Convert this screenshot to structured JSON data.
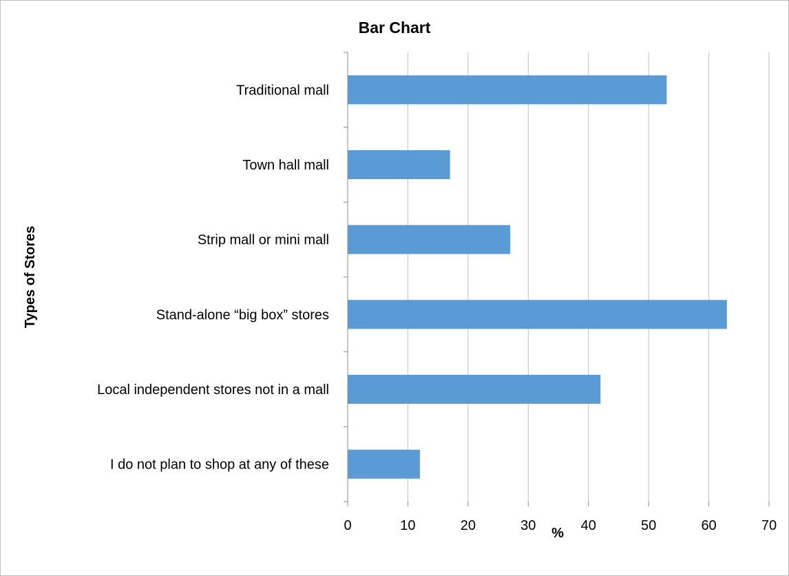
{
  "chart_data": {
    "type": "bar",
    "orientation": "horizontal",
    "title": "Bar Chart",
    "xlabel": "%",
    "ylabel": "Types of Stores",
    "categories": [
      "Traditional mall",
      "Town hall mall",
      "Strip mall or mini mall",
      "Stand-alone “big box” stores",
      "Local independent stores not in a mall",
      "I do not plan to shop at any of these"
    ],
    "values": [
      53,
      17,
      27,
      63,
      42,
      12
    ],
    "xlim": [
      0,
      70
    ],
    "xticks": [
      0,
      10,
      20,
      30,
      40,
      50,
      60,
      70
    ],
    "grid": "vertical",
    "legend": "none",
    "bar_color": "#5b9bd5",
    "grid_color": "#bfbfbf",
    "axis_color": "#888888"
  }
}
